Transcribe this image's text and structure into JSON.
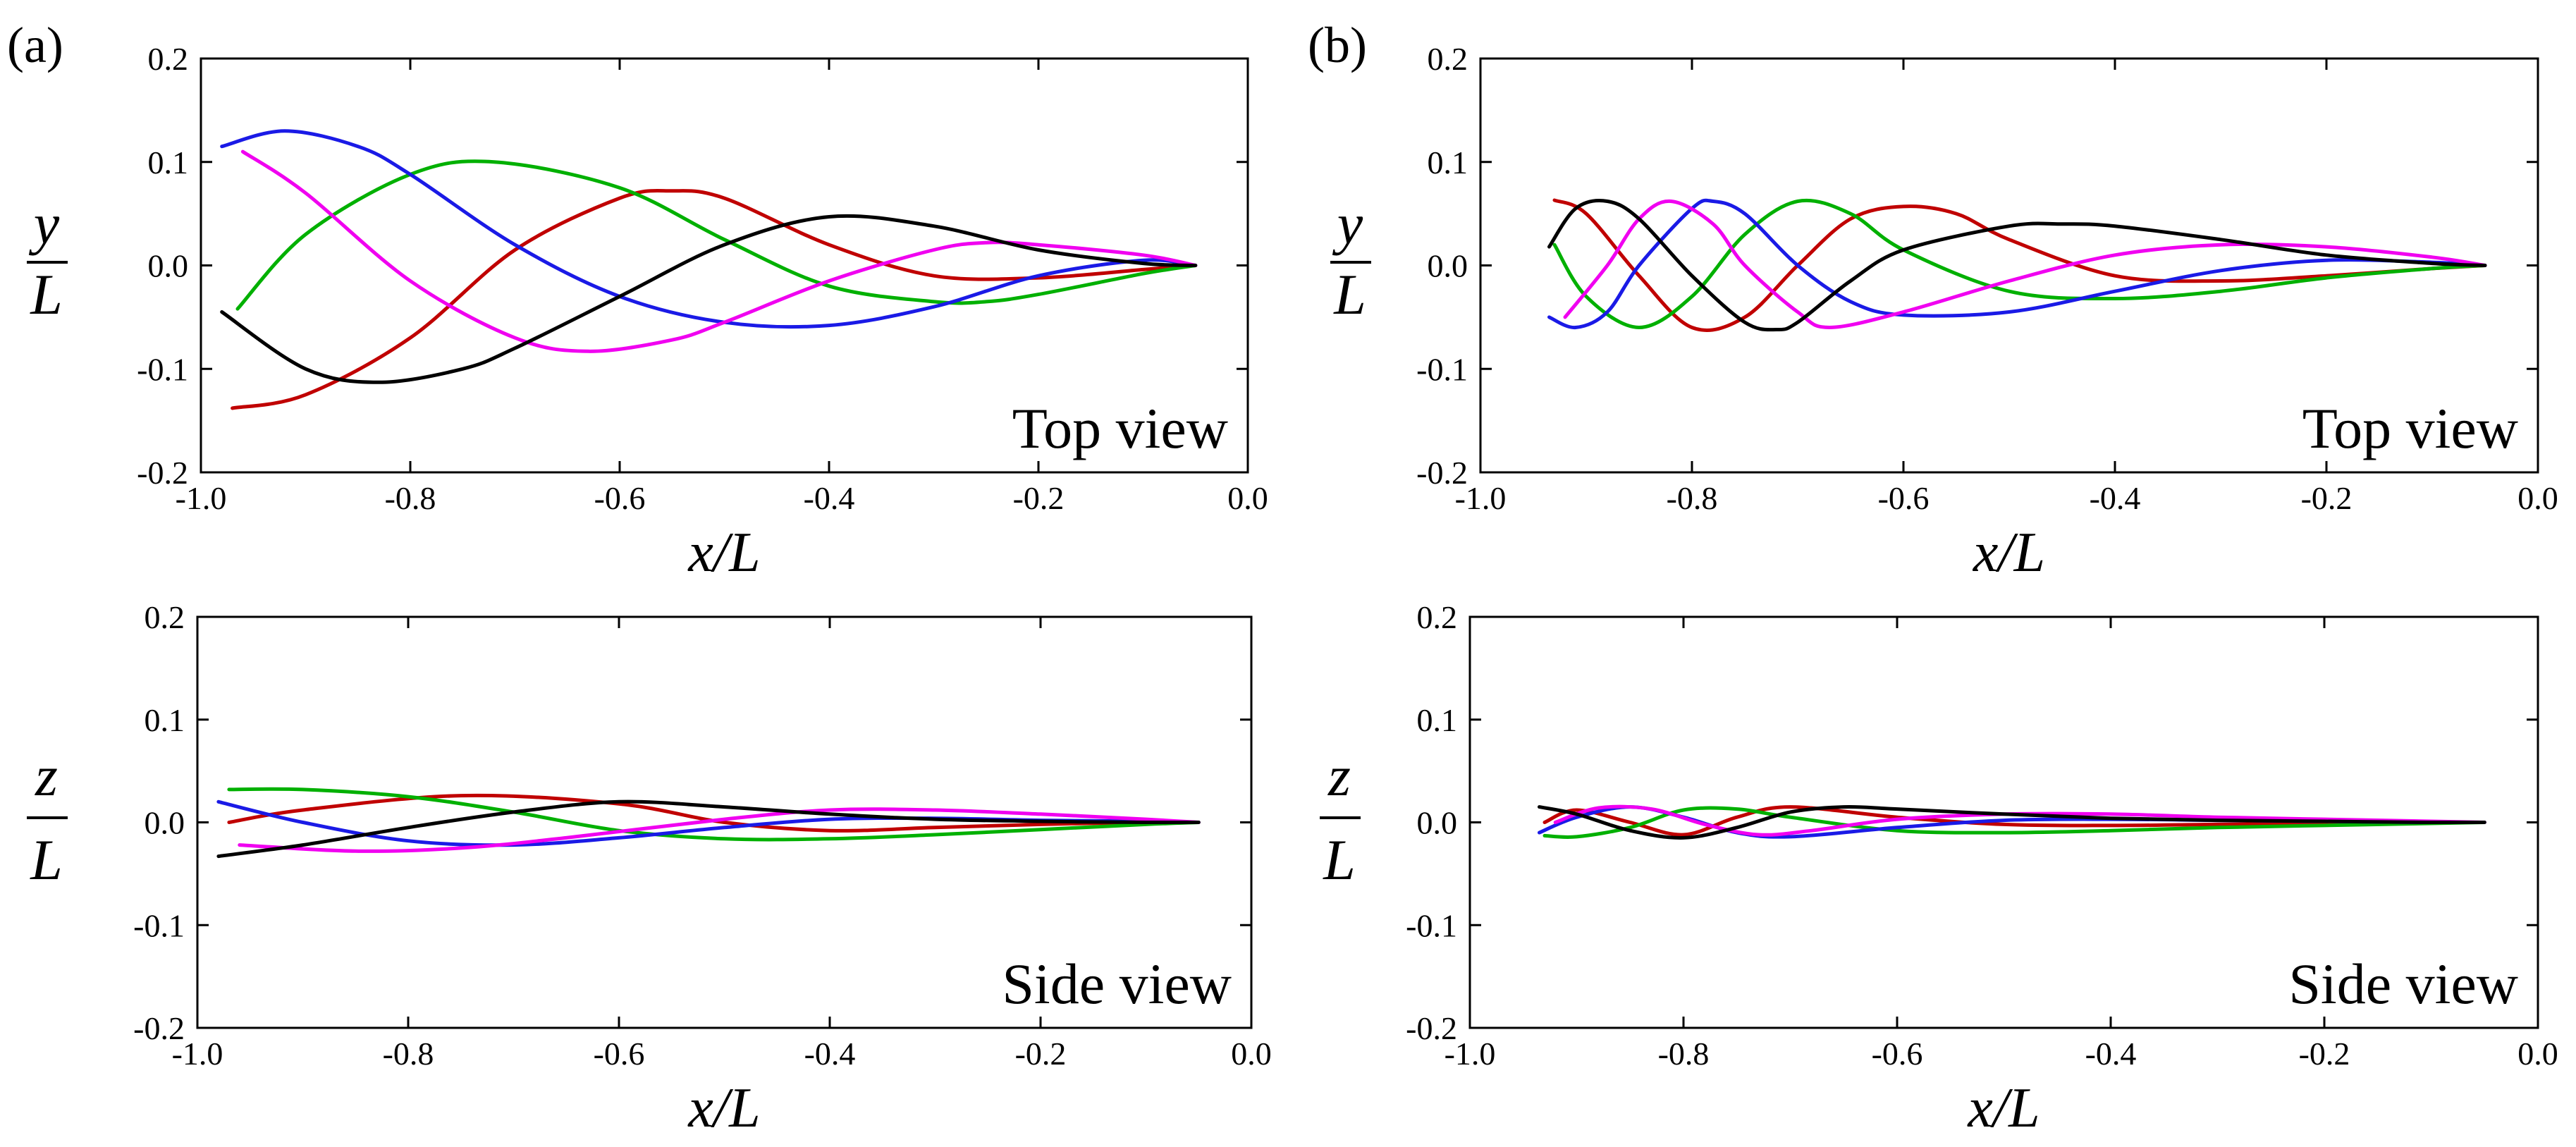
{
  "panel_labels": [
    "(a)",
    "(b)"
  ],
  "x_label": "x/L",
  "y_label_num": "y",
  "z_label_num": "z",
  "frac_den": "L",
  "colors": {
    "red": "#c00000",
    "green": "#00b000",
    "blue": "#1a1ae6",
    "magenta": "#f000f0",
    "black": "#000000"
  },
  "chart_data": [
    {
      "id": "a-top",
      "type": "line",
      "panel": "(a)",
      "view_label": "Top view",
      "xlabel": "x/L",
      "ylabel": "y/L",
      "xlim": [
        -1.0,
        0.0
      ],
      "ylim": [
        -0.2,
        0.2
      ],
      "xticks": [
        "-1.0",
        "-0.8",
        "-0.6",
        "-0.4",
        "-0.2",
        "0.0"
      ],
      "yticks": [
        "0.2",
        "0.1",
        "0.0",
        "-0.1",
        "-0.2"
      ],
      "series": [
        {
          "name": "red",
          "x": [
            -0.97,
            -0.9,
            -0.8,
            -0.7,
            -0.6,
            -0.55,
            -0.5,
            -0.4,
            -0.3,
            -0.2,
            -0.1,
            -0.05
          ],
          "y": [
            -0.138,
            -0.125,
            -0.07,
            0.015,
            0.065,
            0.072,
            0.065,
            0.02,
            -0.01,
            -0.012,
            -0.004,
            0.0
          ]
        },
        {
          "name": "green",
          "x": [
            -0.965,
            -0.9,
            -0.8,
            -0.72,
            -0.6,
            -0.5,
            -0.4,
            -0.3,
            -0.25,
            -0.2,
            -0.1,
            -0.05
          ],
          "y": [
            -0.042,
            0.03,
            0.088,
            0.1,
            0.075,
            0.025,
            -0.02,
            -0.035,
            -0.035,
            -0.028,
            -0.008,
            0.0
          ]
        },
        {
          "name": "blue",
          "x": [
            -0.98,
            -0.92,
            -0.85,
            -0.8,
            -0.7,
            -0.6,
            -0.5,
            -0.4,
            -0.3,
            -0.2,
            -0.1,
            -0.05
          ],
          "y": [
            0.115,
            0.13,
            0.115,
            0.088,
            0.02,
            -0.03,
            -0.055,
            -0.058,
            -0.04,
            -0.01,
            0.005,
            0.0
          ]
        },
        {
          "name": "magenta",
          "x": [
            -0.96,
            -0.9,
            -0.8,
            -0.7,
            -0.63,
            -0.55,
            -0.5,
            -0.4,
            -0.3,
            -0.25,
            -0.2,
            -0.1,
            -0.05
          ],
          "y": [
            0.11,
            0.07,
            -0.015,
            -0.07,
            -0.083,
            -0.072,
            -0.055,
            -0.015,
            0.015,
            0.022,
            0.02,
            0.01,
            0.0
          ]
        },
        {
          "name": "black",
          "x": [
            -0.98,
            -0.9,
            -0.83,
            -0.75,
            -0.7,
            -0.6,
            -0.5,
            -0.4,
            -0.3,
            -0.2,
            -0.1,
            -0.05
          ],
          "y": [
            -0.045,
            -0.1,
            -0.113,
            -0.1,
            -0.08,
            -0.03,
            0.02,
            0.047,
            0.038,
            0.015,
            0.002,
            0.0
          ]
        }
      ]
    },
    {
      "id": "b-top",
      "type": "line",
      "panel": "(b)",
      "view_label": "Top view",
      "xlabel": "x/L",
      "ylabel": "y/L",
      "xlim": [
        -1.0,
        0.0
      ],
      "ylim": [
        -0.2,
        0.2
      ],
      "xticks": [
        "-1.0",
        "-0.8",
        "-0.6",
        "-0.4",
        "-0.2",
        "0.0"
      ],
      "yticks": [
        "0.2",
        "0.1",
        "0.0",
        "-0.1",
        "-0.2"
      ],
      "series": [
        {
          "name": "red",
          "x": [
            -0.93,
            -0.9,
            -0.85,
            -0.8,
            -0.75,
            -0.7,
            -0.65,
            -0.6,
            -0.55,
            -0.5,
            -0.4,
            -0.3,
            -0.2,
            -0.1,
            -0.05
          ],
          "y": [
            0.063,
            0.05,
            -0.01,
            -0.06,
            -0.05,
            0.0,
            0.045,
            0.057,
            0.05,
            0.025,
            -0.01,
            -0.015,
            -0.01,
            -0.003,
            0.0
          ]
        },
        {
          "name": "green",
          "x": [
            -0.93,
            -0.9,
            -0.85,
            -0.8,
            -0.75,
            -0.7,
            -0.65,
            -0.6,
            -0.5,
            -0.4,
            -0.3,
            -0.2,
            -0.1,
            -0.05
          ],
          "y": [
            0.02,
            -0.03,
            -0.06,
            -0.03,
            0.03,
            0.062,
            0.05,
            0.015,
            -0.025,
            -0.032,
            -0.025,
            -0.012,
            -0.003,
            0.0
          ]
        },
        {
          "name": "blue",
          "x": [
            -0.935,
            -0.91,
            -0.88,
            -0.85,
            -0.8,
            -0.78,
            -0.75,
            -0.7,
            -0.65,
            -0.6,
            -0.5,
            -0.4,
            -0.3,
            -0.2,
            -0.1,
            -0.05
          ],
          "y": [
            -0.05,
            -0.06,
            -0.045,
            0.0,
            0.055,
            0.062,
            0.05,
            0.0,
            -0.035,
            -0.048,
            -0.045,
            -0.025,
            -0.005,
            0.005,
            0.003,
            0.0
          ]
        },
        {
          "name": "magenta",
          "x": [
            -0.92,
            -0.88,
            -0.85,
            -0.82,
            -0.78,
            -0.75,
            -0.7,
            -0.67,
            -0.6,
            -0.5,
            -0.4,
            -0.3,
            -0.2,
            -0.1,
            -0.05
          ],
          "y": [
            -0.05,
            0.0,
            0.045,
            0.062,
            0.04,
            0.0,
            -0.045,
            -0.06,
            -0.045,
            -0.015,
            0.01,
            0.02,
            0.018,
            0.008,
            0.0
          ]
        },
        {
          "name": "black",
          "x": [
            -0.935,
            -0.91,
            -0.88,
            -0.85,
            -0.8,
            -0.75,
            -0.72,
            -0.7,
            -0.65,
            -0.6,
            -0.5,
            -0.45,
            -0.4,
            -0.3,
            -0.2,
            -0.1,
            -0.05
          ],
          "y": [
            0.018,
            0.055,
            0.062,
            0.045,
            -0.01,
            -0.055,
            -0.062,
            -0.055,
            -0.015,
            0.015,
            0.038,
            0.04,
            0.038,
            0.025,
            0.01,
            0.002,
            0.0
          ]
        }
      ]
    },
    {
      "id": "a-side",
      "type": "line",
      "panel": "(a)",
      "view_label": "Side view",
      "xlabel": "x/L",
      "ylabel": "z/L",
      "xlim": [
        -1.0,
        0.0
      ],
      "ylim": [
        -0.2,
        0.2
      ],
      "xticks": [
        "-1.0",
        "-0.8",
        "-0.6",
        "-0.4",
        "-0.2",
        "0.0"
      ],
      "yticks": [
        "0.2",
        "0.1",
        "0.0",
        "-0.1",
        "-0.2"
      ],
      "series": [
        {
          "name": "red",
          "x": [
            -0.97,
            -0.9,
            -0.75,
            -0.6,
            -0.5,
            -0.4,
            -0.3,
            -0.2,
            -0.1,
            -0.05
          ],
          "y": [
            0.0,
            0.012,
            0.026,
            0.018,
            0.0,
            -0.008,
            -0.005,
            -0.002,
            0.0,
            0.0
          ]
        },
        {
          "name": "green",
          "x": [
            -0.97,
            -0.9,
            -0.8,
            -0.7,
            -0.6,
            -0.5,
            -0.4,
            -0.3,
            -0.2,
            -0.1,
            -0.05
          ],
          "y": [
            0.032,
            0.032,
            0.025,
            0.01,
            -0.008,
            -0.016,
            -0.016,
            -0.012,
            -0.007,
            -0.002,
            0.0
          ]
        },
        {
          "name": "blue",
          "x": [
            -0.98,
            -0.9,
            -0.8,
            -0.7,
            -0.6,
            -0.5,
            -0.4,
            -0.3,
            -0.2,
            -0.1,
            -0.05
          ],
          "y": [
            0.02,
            0.0,
            -0.018,
            -0.022,
            -0.015,
            -0.005,
            0.003,
            0.004,
            0.002,
            0.001,
            0.0
          ]
        },
        {
          "name": "magenta",
          "x": [
            -0.96,
            -0.85,
            -0.75,
            -0.65,
            -0.5,
            -0.4,
            -0.3,
            -0.2,
            -0.1,
            -0.05
          ],
          "y": [
            -0.022,
            -0.028,
            -0.025,
            -0.015,
            0.003,
            0.012,
            0.012,
            0.008,
            0.003,
            0.0
          ]
        },
        {
          "name": "black",
          "x": [
            -0.98,
            -0.9,
            -0.8,
            -0.7,
            -0.6,
            -0.5,
            -0.4,
            -0.3,
            -0.2,
            -0.1,
            -0.05
          ],
          "y": [
            -0.033,
            -0.022,
            -0.005,
            0.01,
            0.02,
            0.015,
            0.008,
            0.003,
            0.001,
            0.0,
            0.0
          ]
        }
      ]
    },
    {
      "id": "b-side",
      "type": "line",
      "panel": "(b)",
      "view_label": "Side view",
      "xlabel": "x/L",
      "ylabel": "z/L",
      "xlim": [
        -1.0,
        0.0
      ],
      "ylim": [
        -0.2,
        0.2
      ],
      "xticks": [
        "-1.0",
        "-0.8",
        "-0.6",
        "-0.4",
        "-0.2",
        "0.0"
      ],
      "yticks": [
        "0.2",
        "0.1",
        "0.0",
        "-0.1",
        "-0.2"
      ],
      "series": [
        {
          "name": "red",
          "x": [
            -0.93,
            -0.9,
            -0.85,
            -0.8,
            -0.75,
            -0.7,
            -0.6,
            -0.5,
            -0.4,
            -0.3,
            -0.2,
            -0.1,
            -0.05
          ],
          "y": [
            0.0,
            0.012,
            0.0,
            -0.012,
            0.005,
            0.015,
            0.005,
            -0.002,
            -0.003,
            -0.002,
            -0.001,
            0.0,
            0.0
          ]
        },
        {
          "name": "green",
          "x": [
            -0.93,
            -0.9,
            -0.85,
            -0.8,
            -0.75,
            -0.7,
            -0.6,
            -0.5,
            -0.4,
            -0.3,
            -0.2,
            -0.1,
            -0.05
          ],
          "y": [
            -0.013,
            -0.014,
            -0.005,
            0.012,
            0.013,
            0.005,
            -0.008,
            -0.01,
            -0.008,
            -0.005,
            -0.003,
            -0.001,
            0.0
          ]
        },
        {
          "name": "blue",
          "x": [
            -0.935,
            -0.9,
            -0.85,
            -0.8,
            -0.75,
            -0.7,
            -0.6,
            -0.5,
            -0.4,
            -0.3,
            -0.2,
            -0.1,
            -0.05
          ],
          "y": [
            -0.01,
            0.005,
            0.015,
            0.005,
            -0.01,
            -0.014,
            -0.005,
            0.002,
            0.003,
            0.002,
            0.001,
            0.0,
            0.0
          ]
        },
        {
          "name": "magenta",
          "x": [
            -0.92,
            -0.88,
            -0.83,
            -0.78,
            -0.73,
            -0.68,
            -0.6,
            -0.5,
            -0.4,
            -0.3,
            -0.2,
            -0.1,
            -0.05
          ],
          "y": [
            0.0,
            0.014,
            0.013,
            -0.002,
            -0.012,
            -0.008,
            0.003,
            0.008,
            0.008,
            0.005,
            0.003,
            0.001,
            0.0
          ]
        },
        {
          "name": "black",
          "x": [
            -0.935,
            -0.9,
            -0.85,
            -0.8,
            -0.75,
            -0.7,
            -0.65,
            -0.6,
            -0.5,
            -0.4,
            -0.3,
            -0.2,
            -0.1,
            -0.05
          ],
          "y": [
            0.015,
            0.008,
            -0.008,
            -0.015,
            -0.005,
            0.01,
            0.015,
            0.013,
            0.008,
            0.004,
            0.002,
            0.001,
            0.0,
            0.0
          ]
        }
      ]
    }
  ]
}
